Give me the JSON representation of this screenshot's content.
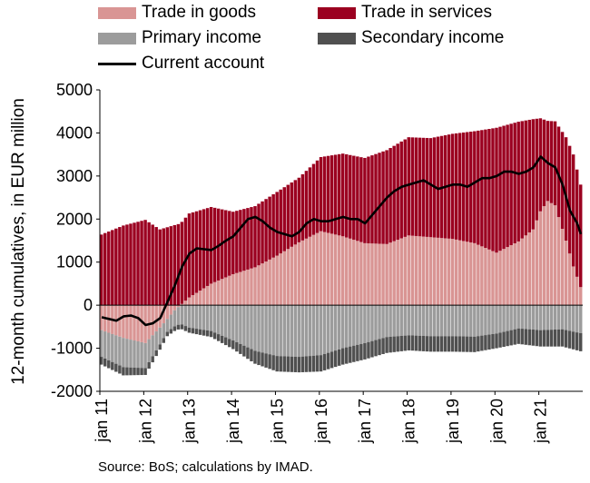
{
  "chart_data": {
    "type": "bar",
    "stacked": true,
    "ylabel": "12-month cumulatives, in EUR million",
    "ylim": [
      -2000,
      5000
    ],
    "yticks": [
      -2000,
      -1000,
      0,
      1000,
      2000,
      3000,
      4000,
      5000
    ],
    "ytick_labels": [
      "-2000",
      "-1000",
      "0",
      "1000",
      "2000",
      "3000",
      "4000",
      "5000"
    ],
    "xtick_labels": [
      "jan 11",
      "jan 12",
      "jan 13",
      "jan 14",
      "jan 15",
      "jan 16",
      "jan 17",
      "jan 18",
      "jan 19",
      "jan 20",
      "jan 21"
    ],
    "x_start": "2011-01",
    "months": 132,
    "grid": false,
    "legend_position": "top",
    "series": [
      {
        "name": "Trade in goods",
        "kind": "bar",
        "color": "#d99594",
        "anchors": [
          [
            0,
            -580
          ],
          [
            6,
            -760
          ],
          [
            12,
            -880
          ],
          [
            16,
            -520
          ],
          [
            20,
            -120
          ],
          [
            24,
            180
          ],
          [
            30,
            500
          ],
          [
            36,
            720
          ],
          [
            42,
            880
          ],
          [
            48,
            1150
          ],
          [
            54,
            1460
          ],
          [
            60,
            1720
          ],
          [
            66,
            1600
          ],
          [
            72,
            1440
          ],
          [
            78,
            1420
          ],
          [
            84,
            1620
          ],
          [
            90,
            1580
          ],
          [
            96,
            1540
          ],
          [
            102,
            1440
          ],
          [
            108,
            1220
          ],
          [
            114,
            1480
          ],
          [
            118,
            1760
          ],
          [
            120,
            2180
          ],
          [
            122,
            2420
          ],
          [
            124,
            2320
          ],
          [
            127,
            1500
          ],
          [
            129,
            900
          ],
          [
            131,
            420
          ]
        ]
      },
      {
        "name": "Trade in services",
        "kind": "bar",
        "color": "#9b0020",
        "anchors": [
          [
            0,
            1640
          ],
          [
            6,
            1850
          ],
          [
            12,
            1980
          ],
          [
            16,
            1760
          ],
          [
            20,
            1860
          ],
          [
            24,
            1950
          ],
          [
            30,
            1780
          ],
          [
            36,
            1450
          ],
          [
            42,
            1420
          ],
          [
            48,
            1480
          ],
          [
            54,
            1500
          ],
          [
            60,
            1720
          ],
          [
            66,
            1920
          ],
          [
            72,
            1980
          ],
          [
            78,
            2180
          ],
          [
            84,
            2280
          ],
          [
            90,
            2300
          ],
          [
            96,
            2440
          ],
          [
            102,
            2600
          ],
          [
            108,
            2900
          ],
          [
            114,
            2780
          ],
          [
            118,
            2560
          ],
          [
            120,
            2160
          ],
          [
            122,
            1860
          ],
          [
            124,
            1950
          ],
          [
            127,
            2400
          ],
          [
            129,
            2600
          ],
          [
            131,
            2380
          ]
        ]
      },
      {
        "name": "Primary income",
        "kind": "bar",
        "color": "#9c9c9c",
        "anchors": [
          [
            0,
            -620
          ],
          [
            6,
            -680
          ],
          [
            12,
            -580
          ],
          [
            18,
            -300
          ],
          [
            24,
            -520
          ],
          [
            30,
            -600
          ],
          [
            36,
            -820
          ],
          [
            42,
            -1060
          ],
          [
            48,
            -1180
          ],
          [
            54,
            -1200
          ],
          [
            60,
            -1160
          ],
          [
            66,
            -1000
          ],
          [
            72,
            -880
          ],
          [
            78,
            -740
          ],
          [
            84,
            -700
          ],
          [
            90,
            -720
          ],
          [
            96,
            -720
          ],
          [
            102,
            -730
          ],
          [
            108,
            -660
          ],
          [
            114,
            -540
          ],
          [
            120,
            -580
          ],
          [
            126,
            -560
          ],
          [
            131,
            -650
          ]
        ]
      },
      {
        "name": "Secondary income",
        "kind": "bar",
        "color": "#505050",
        "anchors": [
          [
            0,
            -180
          ],
          [
            6,
            -190
          ],
          [
            12,
            -160
          ],
          [
            18,
            -100
          ],
          [
            24,
            -120
          ],
          [
            30,
            -140
          ],
          [
            36,
            -200
          ],
          [
            42,
            -300
          ],
          [
            48,
            -360
          ],
          [
            54,
            -360
          ],
          [
            60,
            -380
          ],
          [
            66,
            -380
          ],
          [
            72,
            -380
          ],
          [
            78,
            -370
          ],
          [
            84,
            -350
          ],
          [
            90,
            -360
          ],
          [
            96,
            -360
          ],
          [
            102,
            -360
          ],
          [
            108,
            -340
          ],
          [
            114,
            -360
          ],
          [
            120,
            -380
          ],
          [
            126,
            -400
          ],
          [
            131,
            -420
          ]
        ]
      },
      {
        "name": "Current account",
        "kind": "line",
        "color": "#000000",
        "anchors": [
          [
            0,
            -280
          ],
          [
            4,
            -360
          ],
          [
            6,
            -260
          ],
          [
            8,
            -240
          ],
          [
            10,
            -300
          ],
          [
            12,
            -460
          ],
          [
            14,
            -420
          ],
          [
            16,
            -300
          ],
          [
            18,
            80
          ],
          [
            20,
            460
          ],
          [
            22,
            900
          ],
          [
            24,
            1200
          ],
          [
            26,
            1320
          ],
          [
            28,
            1300
          ],
          [
            30,
            1280
          ],
          [
            32,
            1380
          ],
          [
            34,
            1500
          ],
          [
            36,
            1600
          ],
          [
            38,
            1800
          ],
          [
            40,
            2000
          ],
          [
            42,
            2050
          ],
          [
            44,
            1950
          ],
          [
            46,
            1800
          ],
          [
            48,
            1700
          ],
          [
            50,
            1650
          ],
          [
            52,
            1600
          ],
          [
            54,
            1700
          ],
          [
            56,
            1900
          ],
          [
            58,
            2000
          ],
          [
            60,
            1950
          ],
          [
            62,
            1950
          ],
          [
            64,
            2000
          ],
          [
            66,
            2050
          ],
          [
            68,
            2000
          ],
          [
            70,
            2000
          ],
          [
            72,
            1900
          ],
          [
            74,
            2100
          ],
          [
            76,
            2300
          ],
          [
            78,
            2500
          ],
          [
            80,
            2650
          ],
          [
            82,
            2750
          ],
          [
            84,
            2800
          ],
          [
            86,
            2850
          ],
          [
            88,
            2900
          ],
          [
            90,
            2800
          ],
          [
            92,
            2700
          ],
          [
            94,
            2750
          ],
          [
            96,
            2800
          ],
          [
            98,
            2800
          ],
          [
            100,
            2750
          ],
          [
            102,
            2850
          ],
          [
            104,
            2950
          ],
          [
            106,
            2950
          ],
          [
            108,
            3000
          ],
          [
            110,
            3100
          ],
          [
            112,
            3100
          ],
          [
            114,
            3050
          ],
          [
            116,
            3100
          ],
          [
            118,
            3200
          ],
          [
            120,
            3450
          ],
          [
            122,
            3300
          ],
          [
            124,
            3200
          ],
          [
            126,
            2800
          ],
          [
            128,
            2200
          ],
          [
            130,
            1900
          ],
          [
            131,
            1650
          ]
        ]
      }
    ]
  },
  "source": "Source: BoS; calculations by IMAD."
}
